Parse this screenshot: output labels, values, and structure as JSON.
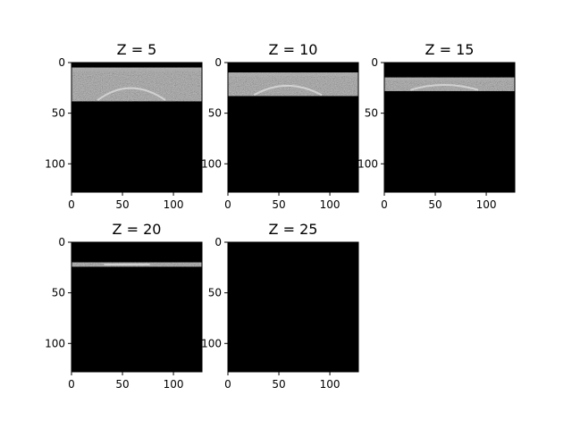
{
  "figure": {
    "background": "#ffffff",
    "image_colormap": "gray"
  },
  "chart_data": [
    {
      "type": "heatmap",
      "title": "Z = 5",
      "xlabel": "",
      "ylabel": "",
      "xlim": [
        0,
        128
      ],
      "ylim": [
        128,
        0
      ],
      "xticks": [
        "0",
        "50",
        "100"
      ],
      "yticks": [
        "0",
        "50",
        "100"
      ],
      "nonzero_rows": [
        5,
        38
      ],
      "content": "grayscale MRI slice with oval structure, remainder black"
    },
    {
      "type": "heatmap",
      "title": "Z = 10",
      "xlabel": "",
      "ylabel": "",
      "xlim": [
        0,
        128
      ],
      "ylim": [
        128,
        0
      ],
      "xticks": [
        "0",
        "50",
        "100"
      ],
      "yticks": [
        "0",
        "50",
        "100"
      ],
      "nonzero_rows": [
        10,
        33
      ],
      "content": "grayscale MRI slice, remainder black"
    },
    {
      "type": "heatmap",
      "title": "Z = 15",
      "xlabel": "",
      "ylabel": "",
      "xlim": [
        0,
        128
      ],
      "ylim": [
        128,
        0
      ],
      "xticks": [
        "0",
        "50",
        "100"
      ],
      "yticks": [
        "0",
        "50",
        "100"
      ],
      "nonzero_rows": [
        15,
        28
      ],
      "content": "grayscale MRI slice, remainder black"
    },
    {
      "type": "heatmap",
      "title": "Z = 20",
      "xlabel": "",
      "ylabel": "",
      "xlim": [
        0,
        128
      ],
      "ylim": [
        128,
        0
      ],
      "xticks": [
        "0",
        "50",
        "100"
      ],
      "yticks": [
        "0",
        "50",
        "100"
      ],
      "nonzero_rows": [
        20,
        24
      ],
      "content": "thin grayscale band, remainder black"
    },
    {
      "type": "heatmap",
      "title": "Z = 25",
      "xlabel": "",
      "ylabel": "",
      "xlim": [
        0,
        128
      ],
      "ylim": [
        128,
        0
      ],
      "xticks": [
        "0",
        "50",
        "100"
      ],
      "yticks": [
        "0",
        "50",
        "100"
      ],
      "nonzero_rows": [],
      "content": "entirely black"
    }
  ]
}
